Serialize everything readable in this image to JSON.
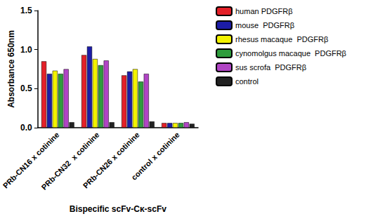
{
  "chart_data": {
    "type": "bar",
    "x_label": "Bispecific scFv-Cκ-scFv",
    "y_label": "Absorbance 650nm",
    "categories": [
      "PRb-CN16 x cotinine",
      "PRb-CN32  x cotinine",
      "PRb-CN26 x cotinine",
      "control x cotinine"
    ],
    "series": [
      {
        "name": "human PDGFRβ",
        "color": "#e32028",
        "values": [
          0.85,
          0.93,
          0.67,
          0.06
        ]
      },
      {
        "name": "mouse  PDGFRβ",
        "color": "#1c1ca6",
        "values": [
          0.69,
          1.04,
          0.72,
          0.06
        ]
      },
      {
        "name": "rhesus macaque  PDGFRβ",
        "color": "#f2f200",
        "values": [
          0.73,
          0.88,
          0.75,
          0.06
        ]
      },
      {
        "name": "cynomolgus macaque  PDGFRβ",
        "color": "#2e9c3c",
        "values": [
          0.69,
          0.8,
          0.59,
          0.06
        ]
      },
      {
        "name": "sus scrofa  PDGFRβ",
        "color": "#b044c4",
        "values": [
          0.75,
          0.86,
          0.69,
          0.07
        ]
      },
      {
        "name": "control",
        "color": "#222222",
        "values": [
          0.07,
          0.07,
          0.08,
          0.05
        ]
      }
    ],
    "ylim": [
      0,
      1.5
    ],
    "yticks": [
      {
        "value": 0,
        "label": "0.0"
      },
      0.5,
      {
        "value": 1,
        "label": "1.0"
      },
      1.5
    ],
    "grid": false,
    "legend": "top-right"
  }
}
